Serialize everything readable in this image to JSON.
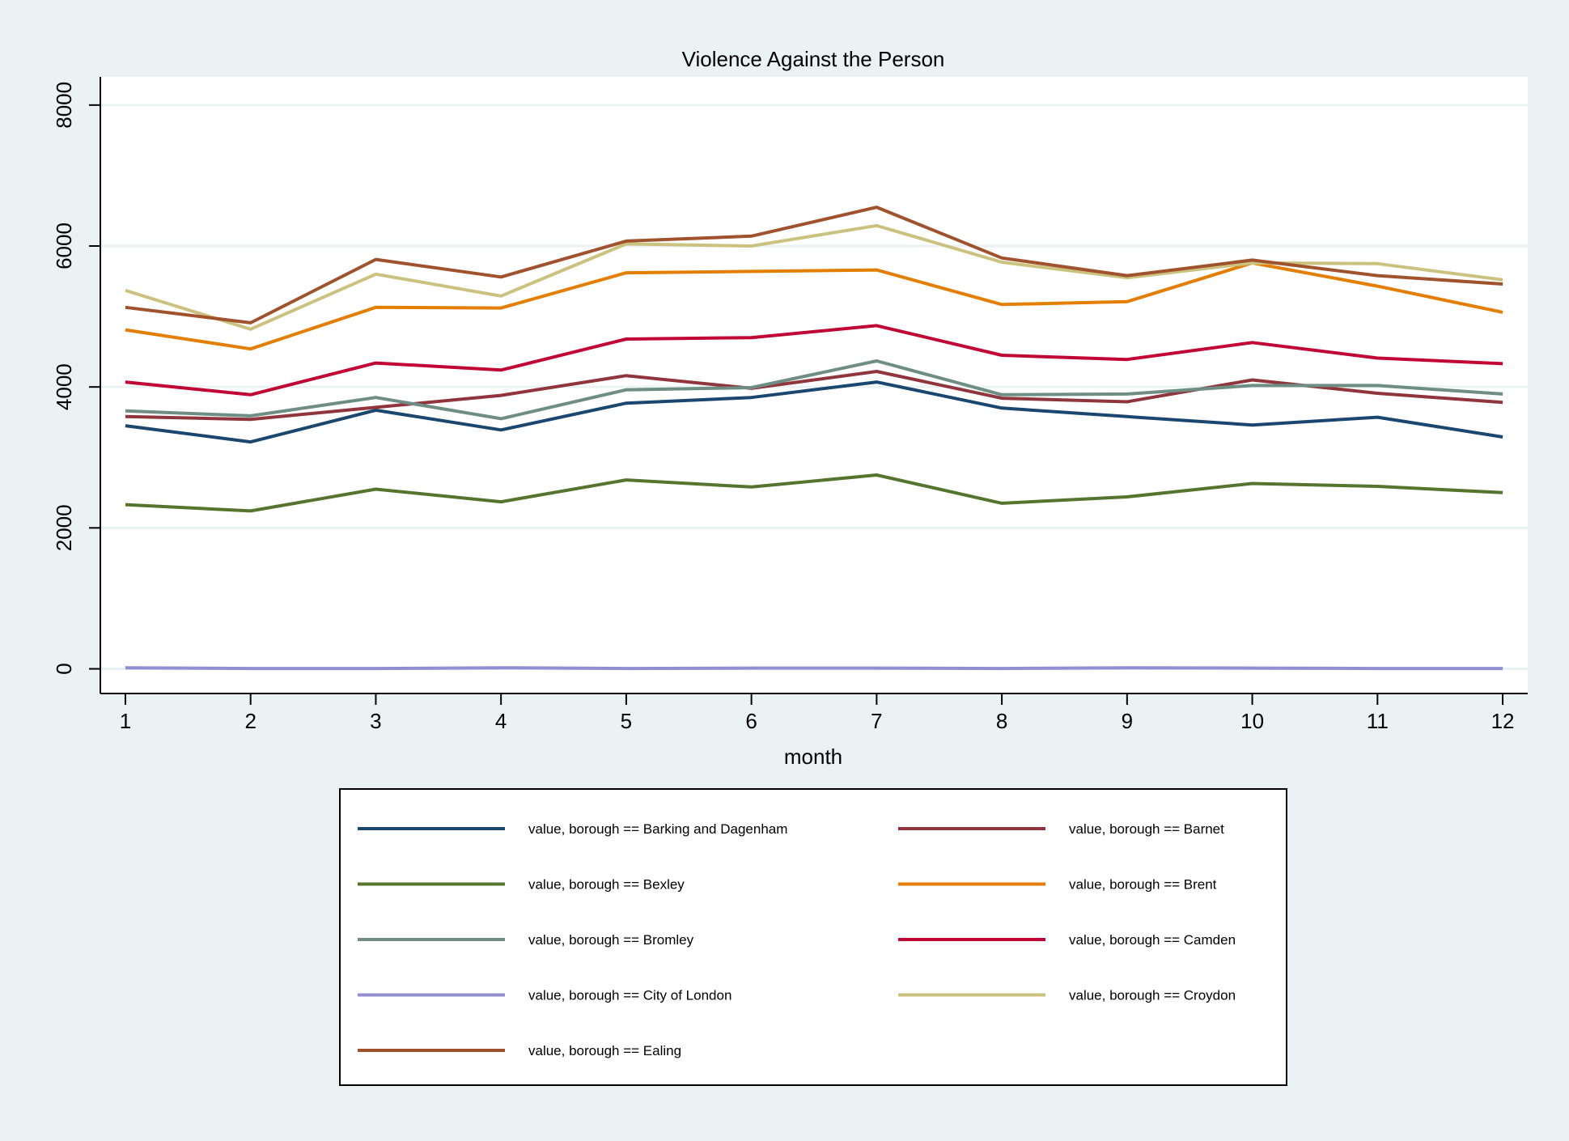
{
  "chart_data": {
    "type": "line",
    "title": "Violence Against the Person",
    "xlabel": "month",
    "ylabel": "",
    "x": [
      1,
      2,
      3,
      4,
      5,
      6,
      7,
      8,
      9,
      10,
      11,
      12
    ],
    "xticks": [
      "1",
      "2",
      "3",
      "4",
      "5",
      "6",
      "7",
      "8",
      "9",
      "10",
      "11",
      "12"
    ],
    "yticks": [
      "0",
      "2000",
      "4000",
      "6000",
      "8000"
    ],
    "xlim": [
      0.8,
      12.2
    ],
    "ylim": [
      -350,
      8400
    ],
    "grid": "horizontal",
    "legend_position": "bottom",
    "series": [
      {
        "name": "value, borough == Barking and Dagenham",
        "color": "#1a476f",
        "values": [
          3450,
          3220,
          3670,
          3390,
          3770,
          3850,
          4070,
          3700,
          3580,
          3460,
          3570,
          3290
        ]
      },
      {
        "name": "value, borough == Barnet",
        "color": "#90353b",
        "values": [
          3580,
          3540,
          3710,
          3880,
          4160,
          3980,
          4220,
          3840,
          3790,
          4100,
          3910,
          3780
        ]
      },
      {
        "name": "value, borough == Bexley",
        "color": "#55752f",
        "values": [
          2330,
          2240,
          2550,
          2370,
          2680,
          2580,
          2750,
          2350,
          2440,
          2630,
          2590,
          2500
        ]
      },
      {
        "name": "value, borough == Brent",
        "color": "#e37e00",
        "values": [
          4810,
          4540,
          5130,
          5120,
          5620,
          5640,
          5660,
          5170,
          5210,
          5760,
          5430,
          5060
        ]
      },
      {
        "name": "value, borough == Bromley",
        "color": "#6e8e84",
        "values": [
          3660,
          3590,
          3850,
          3550,
          3960,
          3990,
          4370,
          3890,
          3900,
          4020,
          4020,
          3900
        ]
      },
      {
        "name": "value, borough == Camden",
        "color": "#c10534",
        "values": [
          4070,
          3890,
          4340,
          4240,
          4680,
          4700,
          4870,
          4450,
          4390,
          4630,
          4410,
          4330
        ]
      },
      {
        "name": "value, borough == City of London",
        "color": "#938dd2",
        "values": [
          15,
          5,
          5,
          15,
          5,
          10,
          10,
          5,
          15,
          10,
          5,
          5
        ]
      },
      {
        "name": "value, borough == Croydon",
        "color": "#cac27e",
        "values": [
          5370,
          4820,
          5600,
          5290,
          6030,
          6000,
          6290,
          5770,
          5550,
          5760,
          5750,
          5520
        ]
      },
      {
        "name": "value, borough == Ealing",
        "color": "#a0522d",
        "values": [
          5130,
          4910,
          5810,
          5560,
          6070,
          6140,
          6550,
          5830,
          5580,
          5800,
          5580,
          5460
        ]
      }
    ]
  }
}
